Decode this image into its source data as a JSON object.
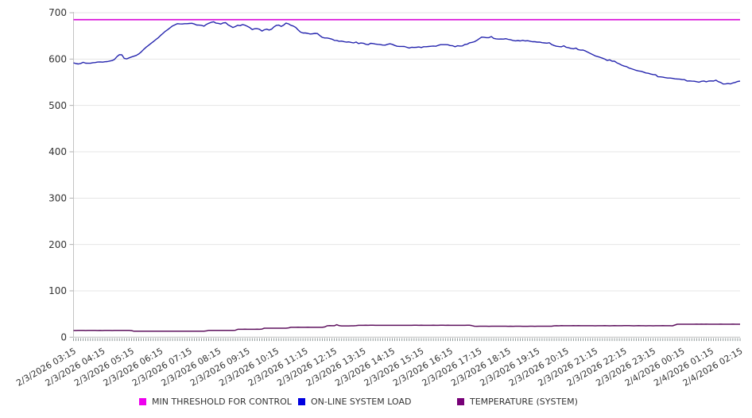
{
  "page": {
    "background": "#ffffff",
    "text_color": "#333333"
  },
  "chart_data": {
    "type": "line",
    "title": "",
    "x_axis": {
      "start_label": "2/3/2026 03:15",
      "end_label": "2/4/2026 02:15",
      "tick_labels": [
        "2/3/2026 03:15",
        "2/3/2026 04:15",
        "2/3/2026 05:15",
        "2/3/2026 06:15",
        "2/3/2026 07:15",
        "2/3/2026 08:15",
        "2/3/2026 09:15",
        "2/3/2026 10:15",
        "2/3/2026 11:15",
        "2/3/2026 12:15",
        "2/3/2026 13:15",
        "2/3/2026 14:15",
        "2/3/2026 15:15",
        "2/3/2026 16:15",
        "2/3/2026 17:15",
        "2/3/2026 18:15",
        "2/3/2026 19:15",
        "2/3/2026 20:15",
        "2/3/2026 21:15",
        "2/3/2026 22:15",
        "2/3/2026 23:15",
        "2/4/2026 00:15",
        "2/4/2026 01:15",
        "2/4/2026 02:15"
      ],
      "points_per_label": 12,
      "interval_minutes": 5,
      "label_rotation_deg": -30
    },
    "y_axis": {
      "min": 0,
      "max": 700,
      "tick_step": 100,
      "tick_labels": [
        "0",
        "100",
        "200",
        "300",
        "400",
        "500",
        "600",
        "700"
      ]
    },
    "grid": {
      "horizontal": true,
      "vertical": false
    },
    "legend": {
      "position": "bottom"
    },
    "style": {
      "grid_color": "#e4e4e4",
      "axis_color": "#c3c3c3",
      "tick_color": "#b0b0b0",
      "minor_tick_color": "#7d8888",
      "label_color": "#333333"
    },
    "series": [
      {
        "name": "MIN THRESHOLD FOR CONTROL",
        "kind": "threshold",
        "color": "#d911d9",
        "swatch_color": "#ee00ee",
        "value": 685
      },
      {
        "name": "ON-LINE SYSTEM LOAD",
        "kind": "line",
        "color": "#2525ae",
        "swatch_color": "#0000e0",
        "values": [
          591.8,
          590.2,
          589.4,
          590.6,
          593.0,
          591.1,
          590.9,
          591.0,
          592.1,
          592.5,
          593.5,
          593.8,
          593.4,
          594.2,
          594.6,
          595.7,
          596.8,
          599.4,
          605.4,
          609.4,
          609.2,
          601.5,
          600.4,
          602.7,
          604.5,
          606.3,
          607.9,
          611.0,
          615.3,
          620.7,
          625.3,
          629.3,
          633.5,
          637.6,
          641.7,
          645.7,
          650.8,
          655.2,
          659.8,
          663.4,
          667.6,
          671.5,
          674.0,
          676.3,
          675.9,
          675.7,
          676.3,
          676.3,
          676.8,
          677.2,
          675.7,
          673.5,
          673.3,
          672.7,
          671.1,
          674.8,
          677.2,
          679.2,
          680.5,
          677.5,
          677.1,
          675.5,
          678.1,
          678.6,
          673.9,
          671.0,
          668.1,
          670.1,
          672.9,
          672.0,
          674.5,
          673.1,
          670.7,
          667.7,
          663.6,
          665.5,
          665.7,
          664.3,
          660.4,
          663.2,
          664.5,
          662.7,
          664.5,
          669.4,
          672.7,
          673.2,
          670.5,
          673.3,
          677.6,
          676.0,
          672.9,
          671.2,
          668.3,
          663.0,
          658.2,
          656.3,
          656.2,
          655.5,
          654.0,
          654.6,
          655.5,
          655.0,
          650.7,
          646.8,
          645.4,
          645.5,
          644.4,
          642.9,
          640.4,
          640.1,
          638.5,
          638.8,
          637.6,
          636.6,
          637.1,
          635.9,
          634.9,
          636.7,
          633.4,
          634.7,
          634.1,
          631.9,
          631.0,
          634.0,
          633.5,
          632.4,
          631.7,
          631.2,
          630.2,
          630.1,
          631.8,
          633.0,
          631.7,
          629.4,
          627.7,
          627.3,
          627.3,
          627.2,
          625.5,
          623.9,
          625.5,
          625.1,
          625.5,
          626.1,
          624.9,
          626.7,
          626.7,
          627.2,
          627.6,
          628.1,
          627.6,
          629.5,
          631.1,
          631.0,
          631.1,
          630.9,
          629.2,
          628.6,
          626.7,
          628.7,
          628.1,
          628.3,
          631.4,
          632.1,
          635.1,
          636.1,
          637.4,
          640.3,
          644.0,
          647.4,
          647.1,
          646.2,
          646.1,
          648.6,
          644.6,
          643.6,
          643.0,
          643.2,
          643.0,
          643.9,
          642.5,
          641.5,
          640.2,
          639.3,
          640.0,
          639.1,
          640.5,
          639.1,
          639.7,
          638.6,
          637.5,
          637.4,
          636.5,
          636.7,
          635.3,
          634.8,
          634.3,
          635.2,
          631.5,
          629.2,
          627.7,
          627.0,
          626.5,
          628.6,
          625.4,
          624.4,
          623.0,
          622.1,
          623.7,
          620.2,
          619.2,
          619.4,
          617.3,
          614.8,
          612.0,
          609.5,
          606.9,
          605.3,
          603.8,
          602.0,
          599.9,
          596.9,
          598.3,
          595.4,
          595.4,
          591.8,
          589.6,
          586.8,
          584.8,
          583.7,
          580.7,
          579.1,
          577.4,
          575.5,
          574.4,
          573.6,
          571.9,
          570.1,
          569.3,
          567.7,
          566.6,
          566.1,
          561.9,
          561.7,
          561.0,
          559.9,
          559.1,
          559.0,
          558.4,
          557.3,
          557.1,
          556.7,
          555.7,
          555.6,
          552.7,
          552.9,
          552.4,
          552.3,
          551.2,
          550.2,
          552.1,
          552.7,
          551.0,
          552.5,
          552.9,
          552.6,
          554.4,
          551.2,
          549.4,
          546.3,
          546.4,
          547.2,
          546.4,
          548.5,
          549.6,
          551.7,
          552.4
        ]
      },
      {
        "name": "TEMPERATURE (SYSTEM)",
        "kind": "line",
        "color": "#5e115e",
        "swatch_color": "#770077",
        "values": [
          14.4,
          14.4,
          14.5,
          14.5,
          14.5,
          14.4,
          14.6,
          14.5,
          14.6,
          14.5,
          14.4,
          14.5,
          14.4,
          14.6,
          14.5,
          14.5,
          14.4,
          14.5,
          14.5,
          14.5,
          14.5,
          14.5,
          14.5,
          14.6,
          14.2,
          12.9,
          13.0,
          13.0,
          13.0,
          13.0,
          13.0,
          13.0,
          13.0,
          13.1,
          13.0,
          13.0,
          13.1,
          13.0,
          13.0,
          13.0,
          12.9,
          13.0,
          13.0,
          13.1,
          13.0,
          13.1,
          13.1,
          13.0,
          13.1,
          12.9,
          13.0,
          13.0,
          13.0,
          13.0,
          13.0,
          13.6,
          14.8,
          14.7,
          14.8,
          14.8,
          14.8,
          14.8,
          14.7,
          14.7,
          14.7,
          14.7,
          14.8,
          14.9,
          16.9,
          17.0,
          16.9,
          17.1,
          17.0,
          16.9,
          17.0,
          16.9,
          17.1,
          16.9,
          17.5,
          19.4,
          19.3,
          19.3,
          19.3,
          19.3,
          19.3,
          19.4,
          19.3,
          19.3,
          19.3,
          20.1,
          21.3,
          21.3,
          21.3,
          21.4,
          21.3,
          21.3,
          21.3,
          21.4,
          21.3,
          21.3,
          21.3,
          21.3,
          21.3,
          21.3,
          22.1,
          24.6,
          24.8,
          24.7,
          24.7,
          26.9,
          24.8,
          24.4,
          24.4,
          24.3,
          24.4,
          24.5,
          24.5,
          24.9,
          25.6,
          25.6,
          25.6,
          25.7,
          25.6,
          25.7,
          25.7,
          25.6,
          25.5,
          25.5,
          25.6,
          25.6,
          25.6,
          25.6,
          25.6,
          25.6,
          25.6,
          25.6,
          25.6,
          25.6,
          25.6,
          25.6,
          25.6,
          25.7,
          25.7,
          25.6,
          25.7,
          25.5,
          25.6,
          25.6,
          25.6,
          25.7,
          25.6,
          25.5,
          25.7,
          25.7,
          25.6,
          25.7,
          25.6,
          25.6,
          25.6,
          25.5,
          25.6,
          25.6,
          25.6,
          25.7,
          25.7,
          24.8,
          23.6,
          23.5,
          23.7,
          23.6,
          23.7,
          23.6,
          23.5,
          23.6,
          23.7,
          23.6,
          23.7,
          23.7,
          23.6,
          23.7,
          23.5,
          23.6,
          23.5,
          23.6,
          23.6,
          23.6,
          23.5,
          23.5,
          23.5,
          23.6,
          23.6,
          23.5,
          23.6,
          23.7,
          23.6,
          23.7,
          23.7,
          23.6,
          23.6,
          24.6,
          24.7,
          24.6,
          24.8,
          24.7,
          24.7,
          24.7,
          24.7,
          24.8,
          24.7,
          24.8,
          24.7,
          24.7,
          24.7,
          24.7,
          24.7,
          24.7,
          24.6,
          24.7,
          24.7,
          24.7,
          24.8,
          24.7,
          24.6,
          24.7,
          24.8,
          24.7,
          24.7,
          24.7,
          24.8,
          24.8,
          24.8,
          24.7,
          24.6,
          24.7,
          24.8,
          24.7,
          24.7,
          24.6,
          24.7,
          24.7,
          24.6,
          24.7,
          24.7,
          24.7,
          24.8,
          24.7,
          24.7,
          24.7,
          24.6,
          26.3,
          28.0,
          27.9,
          28.0,
          28.0,
          28.0,
          28.0,
          27.9,
          28.0,
          28.1,
          28.0,
          28.1,
          28.0,
          28.1,
          28.0,
          28.0,
          27.9,
          28.0,
          28.0,
          28.1,
          27.9,
          28.0,
          28.0,
          28.0,
          28.1,
          28.0,
          27.9,
          28.0
        ]
      }
    ]
  }
}
